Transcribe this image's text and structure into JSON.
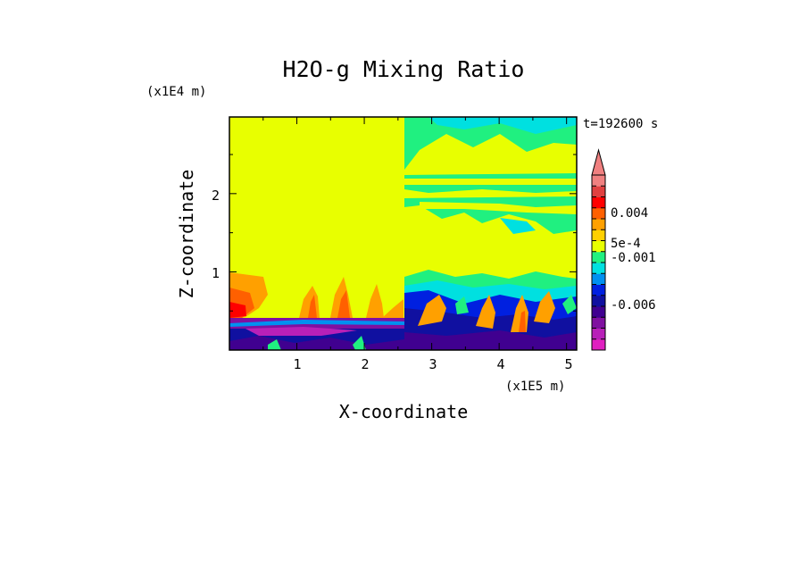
{
  "chart_data": {
    "type": "heatmap",
    "title": "H2O-g Mixing Ratio",
    "xlabel": "X-coordinate",
    "ylabel": "Z-coordinate",
    "x_unit": "(x1E5 m)",
    "y_unit": "(x1E4 m)",
    "time_label": "t=192600 s",
    "xlim": [
      0,
      5.15
    ],
    "ylim": [
      0,
      2.98
    ],
    "x_ticks": [
      "1",
      "2",
      "3",
      "4",
      "5"
    ],
    "y_ticks": [
      "1",
      "2"
    ],
    "colorbar": {
      "colors": [
        "#e020c0",
        "#b820b8",
        "#8010a0",
        "#400090",
        "#1010a0",
        "#0020e0",
        "#0090f0",
        "#00e0e0",
        "#20f080",
        "#e8ff00",
        "#ffd000",
        "#ffa000",
        "#ff6000",
        "#ff0000",
        "#e04040",
        "#f08080"
      ],
      "labels": [
        "-0.006",
        "-0.001",
        "5e-4",
        "0.004"
      ],
      "extend_top": true
    },
    "regions": [
      {
        "x": [
          0,
          2.55
        ],
        "z": [
          0.4,
          2.98
        ],
        "level": "5e-4"
      },
      {
        "x": [
          0,
          2.55
        ],
        "z": [
          0.0,
          0.4
        ],
        "level": "-0.006"
      },
      {
        "x": [
          2.55,
          5.15
        ],
        "z": [
          0.8,
          2.98
        ],
        "level": "5e-4"
      },
      {
        "x": [
          2.55,
          5.15
        ],
        "z": [
          0.0,
          0.8
        ],
        "level": "-0.001"
      }
    ]
  }
}
